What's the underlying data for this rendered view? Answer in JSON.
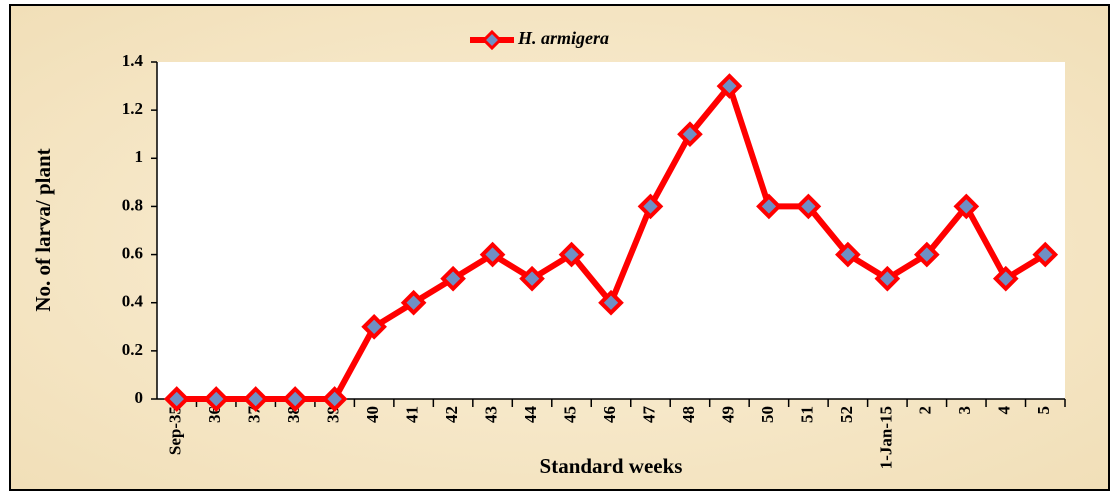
{
  "chart_data": {
    "type": "line",
    "x_label": "Standard weeks",
    "y_label": "No. of larva/ plant",
    "categories": [
      "Sep-35",
      "36",
      "37",
      "38",
      "39",
      "40",
      "41",
      "42",
      "43",
      "44",
      "45",
      "46",
      "47",
      "48",
      "49",
      "50",
      "51",
      "52",
      "1-Jan-15",
      "2",
      "3",
      "4",
      "5"
    ],
    "series": [
      {
        "name": "H. armigera",
        "color": "#ff0000",
        "marker_fill": "#6f8fc4",
        "values": [
          0,
          0,
          0,
          0,
          0,
          0.3,
          0.4,
          0.5,
          0.6,
          0.5,
          0.6,
          0.4,
          0.8,
          1.1,
          1.3,
          0.8,
          0.8,
          0.6,
          0.5,
          0.6,
          0.8,
          0.5,
          0.6
        ]
      }
    ],
    "ylim": [
      0,
      1.4
    ],
    "yticks": [
      0,
      0.2,
      0.4,
      0.6,
      0.8,
      1,
      1.2,
      1.4
    ],
    "grid": false,
    "legend": "top"
  }
}
